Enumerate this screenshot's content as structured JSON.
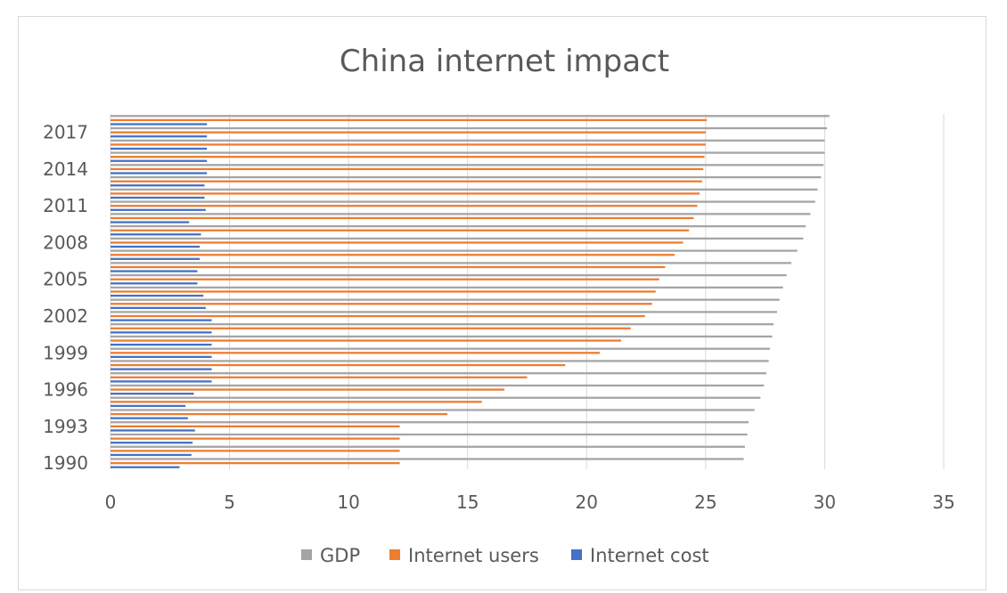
{
  "chart_data": {
    "type": "bar",
    "orientation": "horizontal",
    "title": "China internet impact",
    "xlabel": "",
    "ylabel": "",
    "xlim": [
      0,
      35
    ],
    "x_ticks": [
      "0",
      "5",
      "10",
      "15",
      "20",
      "25",
      "30",
      "35"
    ],
    "grid": true,
    "legend_position": "bottom",
    "categories": [
      "1990",
      "1991",
      "1992",
      "1993",
      "1994",
      "1995",
      "1996",
      "1997",
      "1998",
      "1999",
      "2000",
      "2001",
      "2002",
      "2003",
      "2004",
      "2005",
      "2006",
      "2007",
      "2008",
      "2009",
      "2010",
      "2011",
      "2012",
      "2013",
      "2014",
      "2015",
      "2016",
      "2017",
      "2018"
    ],
    "y_tick_labels": [
      "1990",
      "1993",
      "1996",
      "1999",
      "2002",
      "2005",
      "2008",
      "2011",
      "2014",
      "2017"
    ],
    "series": [
      {
        "name": "GDP",
        "color": "#a5a5a5",
        "values": [
          26.6,
          26.65,
          26.75,
          26.8,
          27.05,
          27.3,
          27.45,
          27.55,
          27.65,
          27.7,
          27.8,
          27.85,
          28.0,
          28.1,
          28.25,
          28.4,
          28.6,
          28.85,
          29.1,
          29.2,
          29.4,
          29.6,
          29.7,
          29.85,
          29.95,
          30.0,
          30.0,
          30.1,
          30.2
        ]
      },
      {
        "name": "Internet users",
        "color": "#ed7d31",
        "values": [
          12.15,
          12.15,
          12.15,
          12.15,
          14.15,
          15.6,
          16.55,
          17.5,
          19.1,
          20.55,
          21.45,
          21.85,
          22.45,
          22.75,
          22.9,
          23.05,
          23.3,
          23.7,
          24.05,
          24.3,
          24.5,
          24.65,
          24.75,
          24.85,
          24.9,
          24.95,
          25.0,
          25.0,
          25.05
        ]
      },
      {
        "name": "Internet cost",
        "color": "#4472c4",
        "values": [
          2.9,
          3.4,
          3.45,
          3.55,
          3.25,
          3.15,
          3.5,
          4.25,
          4.25,
          4.25,
          4.25,
          4.25,
          4.25,
          4.0,
          3.9,
          3.65,
          3.65,
          3.75,
          3.75,
          3.8,
          3.3,
          4.0,
          3.95,
          3.95,
          4.05,
          4.05,
          4.05,
          4.05,
          4.05
        ]
      }
    ]
  }
}
